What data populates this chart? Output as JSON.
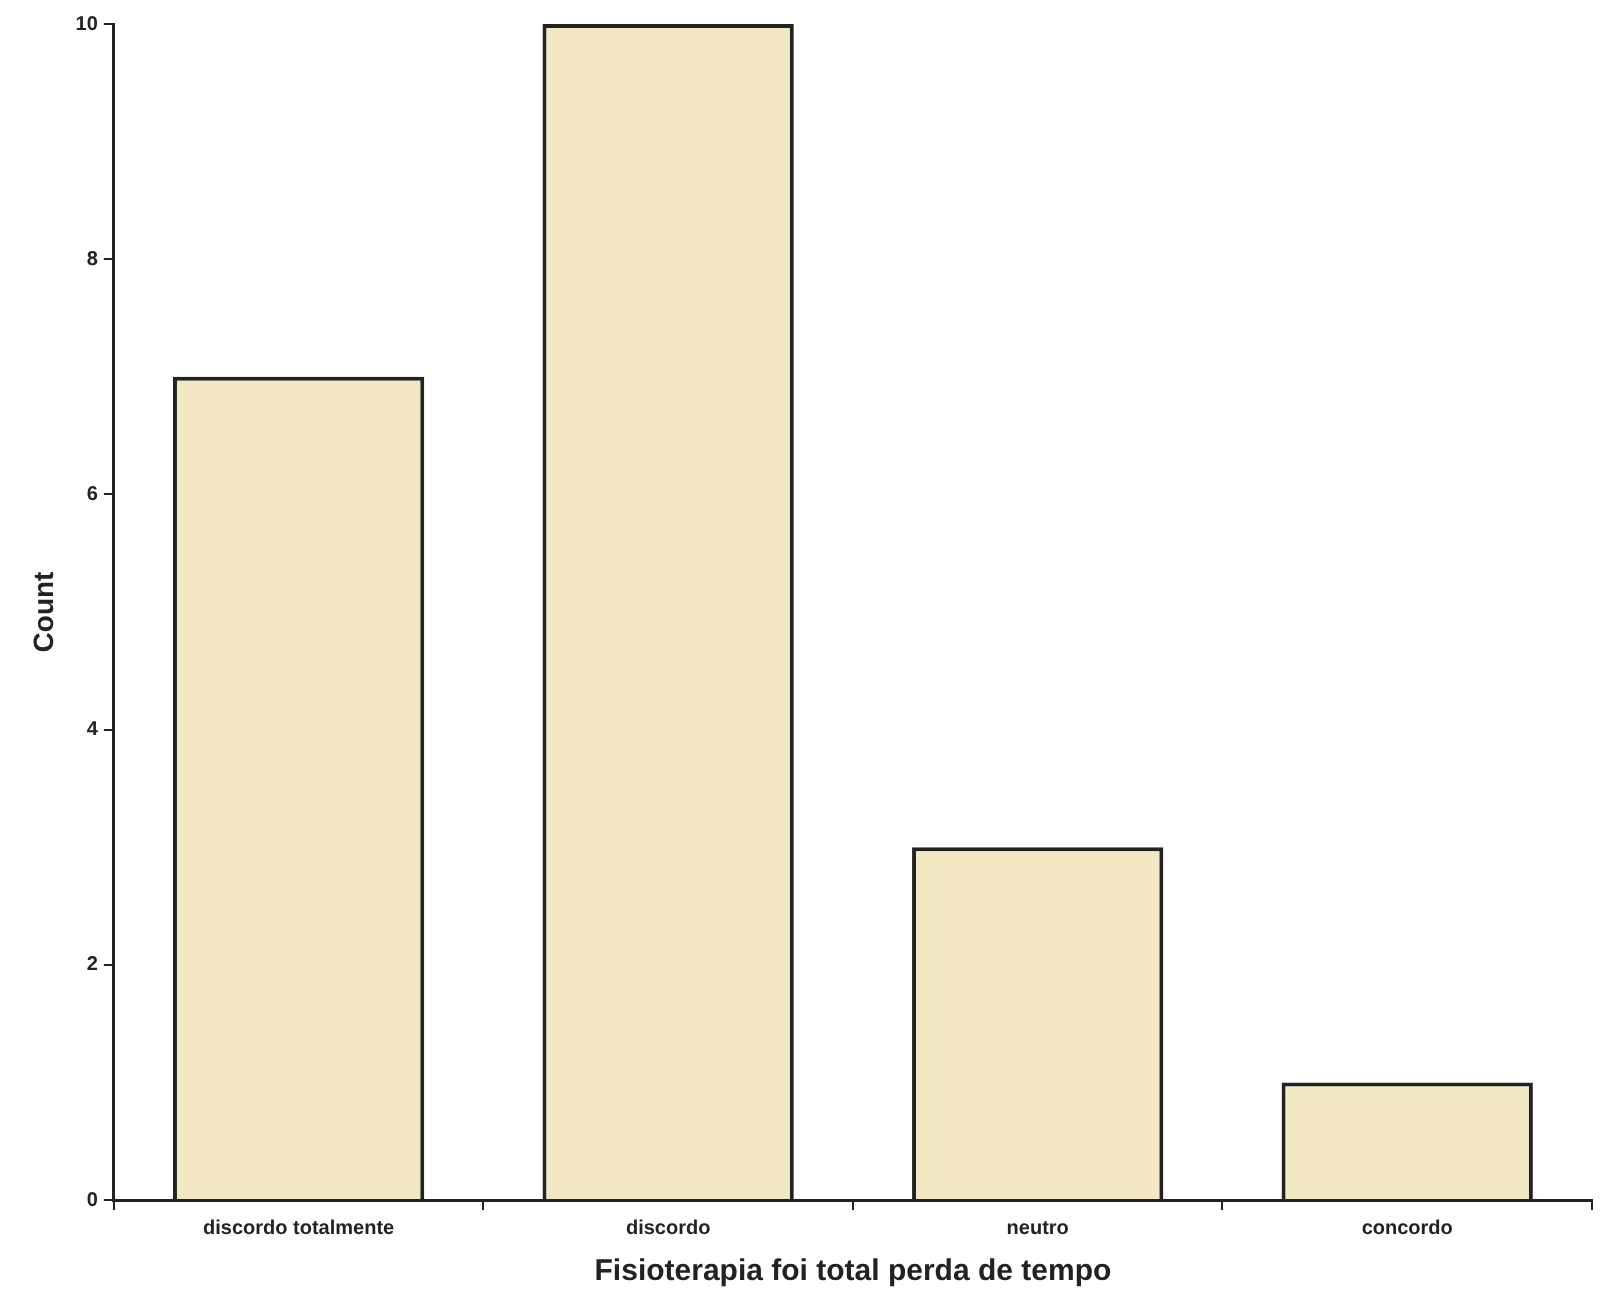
{
  "chart_data": {
    "type": "bar",
    "xlabel": "Fisioterapia foi total perda de tempo",
    "ylabel": "Count",
    "categories": [
      "discordo totalmente",
      "discordo",
      "neutro",
      "concordo"
    ],
    "values": [
      7,
      10,
      3,
      1
    ],
    "color": "#f2e8c4",
    "ylim": [
      0,
      10
    ],
    "yticks": [
      0,
      2,
      4,
      6,
      8,
      10
    ],
    "grid": false,
    "legend": false
  }
}
